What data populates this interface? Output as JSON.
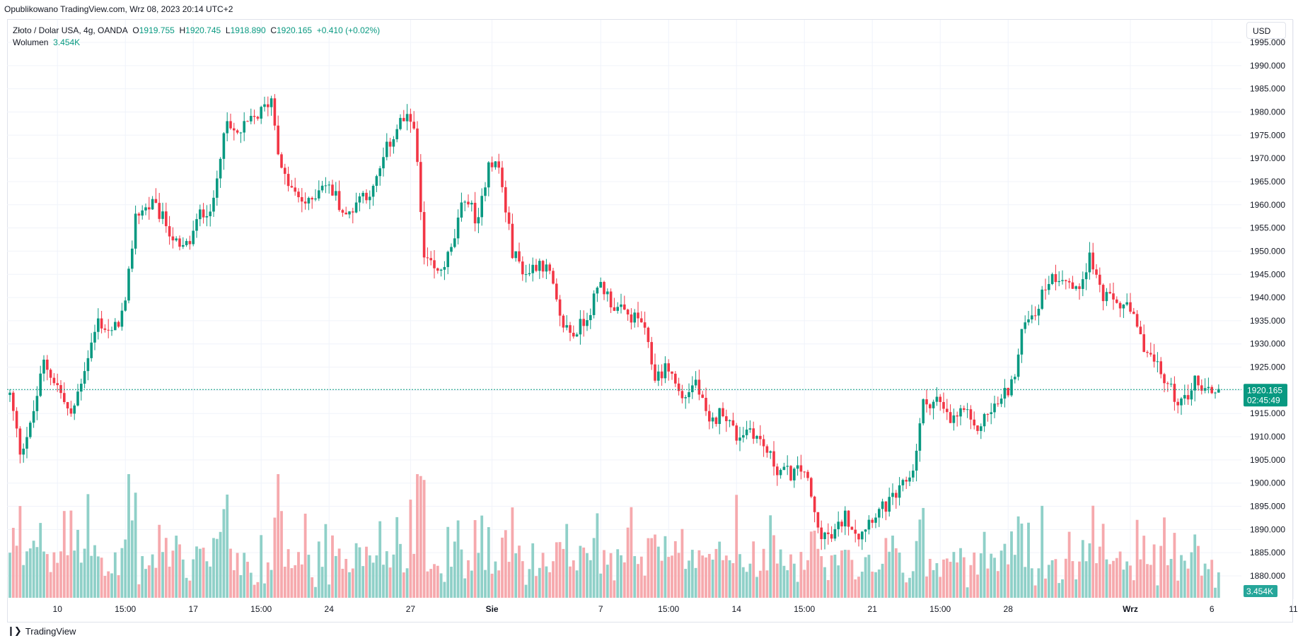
{
  "header": {
    "published": "Opublikowano TradingView.com, Wrz 08, 2023 20:14 UTC+2"
  },
  "legend": {
    "symbol": "Złoto / Dolar USA, 4g, OANDA",
    "o_label": "O",
    "o_value": "1919.755",
    "h_label": "H",
    "h_value": "1920.745",
    "l_label": "L",
    "l_value": "1918.890",
    "c_label": "C",
    "c_value": "1920.165",
    "change": "+0.410 (+0.02%)",
    "volume_label": "Wolumen",
    "volume_value": "3.454K"
  },
  "currency_button": "USD",
  "footer": {
    "brand": "TradingView",
    "logo": "tv-logo-icon"
  },
  "colors": {
    "up": "#089981",
    "down": "#f23645",
    "vol_up": "#8fd0c8",
    "vol_down": "#f6a9ad",
    "grid": "#f0f3fa"
  },
  "chart_data": {
    "type": "candlestick",
    "price_ylim": [
      1878,
      1996
    ],
    "y_ticks": [
      "1880.000",
      "1885.000",
      "1890.000",
      "1895.000",
      "1900.000",
      "1905.000",
      "1910.000",
      "1915.000",
      "1920.000",
      "1925.000",
      "1930.000",
      "1935.000",
      "1940.000",
      "1945.000",
      "1950.000",
      "1955.000",
      "1960.000",
      "1965.000",
      "1970.000",
      "1975.000",
      "1980.000",
      "1985.000",
      "1990.000",
      "1995.000"
    ],
    "x_ticks": [
      {
        "label": "10",
        "bar": 14,
        "bold": false
      },
      {
        "label": "15:00",
        "bar": 34,
        "bold": false
      },
      {
        "label": "17",
        "bar": 54,
        "bold": false
      },
      {
        "label": "15:00",
        "bar": 74,
        "bold": false
      },
      {
        "label": "24",
        "bar": 94,
        "bold": false
      },
      {
        "label": "27",
        "bar": 118,
        "bold": false
      },
      {
        "label": "Sie",
        "bar": 142,
        "bold": true
      },
      {
        "label": "7",
        "bar": 174,
        "bold": false
      },
      {
        "label": "15:00",
        "bar": 194,
        "bold": false
      },
      {
        "label": "14",
        "bar": 214,
        "bold": false
      },
      {
        "label": "15:00",
        "bar": 234,
        "bold": false
      },
      {
        "label": "21",
        "bar": 254,
        "bold": false
      },
      {
        "label": "15:00",
        "bar": 274,
        "bold": false
      },
      {
        "label": "28",
        "bar": 294,
        "bold": false
      },
      {
        "label": "Wrz",
        "bar": 330,
        "bold": true
      },
      {
        "label": "6",
        "bar": 354,
        "bold": false
      },
      {
        "label": "11",
        "bar": 378,
        "bold": false
      }
    ],
    "last_price": "1920.165",
    "last_price_value": 1920.165,
    "countdown": "02:45:49",
    "volume_badge": "3.454K",
    "anchors": [
      [
        0,
        1919
      ],
      [
        3,
        1907
      ],
      [
        6,
        1912
      ],
      [
        10,
        1926
      ],
      [
        14,
        1921
      ],
      [
        18,
        1914
      ],
      [
        22,
        1925
      ],
      [
        26,
        1935
      ],
      [
        30,
        1932
      ],
      [
        34,
        1938
      ],
      [
        37,
        1958
      ],
      [
        42,
        1960
      ],
      [
        46,
        1956
      ],
      [
        50,
        1950
      ],
      [
        53,
        1952
      ],
      [
        56,
        1958
      ],
      [
        60,
        1960
      ],
      [
        63,
        1977
      ],
      [
        67,
        1975
      ],
      [
        71,
        1978
      ],
      [
        74,
        1980
      ],
      [
        77,
        1983
      ],
      [
        80,
        1967
      ],
      [
        84,
        1962
      ],
      [
        88,
        1960
      ],
      [
        92,
        1965
      ],
      [
        96,
        1962
      ],
      [
        99,
        1957
      ],
      [
        103,
        1962
      ],
      [
        107,
        1963
      ],
      [
        111,
        1972
      ],
      [
        115,
        1978
      ],
      [
        119,
        1978
      ],
      [
        122,
        1948
      ],
      [
        126,
        1945
      ],
      [
        130,
        1950
      ],
      [
        134,
        1962
      ],
      [
        138,
        1956
      ],
      [
        141,
        1970
      ],
      [
        144,
        1968
      ],
      [
        148,
        1950
      ],
      [
        152,
        1945
      ],
      [
        156,
        1948
      ],
      [
        159,
        1945
      ],
      [
        162,
        1935
      ],
      [
        166,
        1932
      ],
      [
        170,
        1936
      ],
      [
        174,
        1943
      ],
      [
        178,
        1938
      ],
      [
        182,
        1936
      ],
      [
        186,
        1935
      ],
      [
        190,
        1923
      ],
      [
        194,
        1925
      ],
      [
        198,
        1918
      ],
      [
        202,
        1922
      ],
      [
        206,
        1912
      ],
      [
        210,
        1916
      ],
      [
        214,
        1910
      ],
      [
        218,
        1912
      ],
      [
        222,
        1908
      ],
      [
        226,
        1903
      ],
      [
        230,
        1902
      ],
      [
        234,
        1903
      ],
      [
        238,
        1890
      ],
      [
        242,
        1888
      ],
      [
        246,
        1893
      ],
      [
        250,
        1889
      ],
      [
        254,
        1893
      ],
      [
        258,
        1895
      ],
      [
        262,
        1898
      ],
      [
        266,
        1903
      ],
      [
        269,
        1917
      ],
      [
        273,
        1918
      ],
      [
        277,
        1913
      ],
      [
        281,
        1916
      ],
      [
        284,
        1911
      ],
      [
        288,
        1915
      ],
      [
        292,
        1918
      ],
      [
        296,
        1923
      ],
      [
        299,
        1936
      ],
      [
        302,
        1937
      ],
      [
        306,
        1944
      ],
      [
        310,
        1945
      ],
      [
        314,
        1941
      ],
      [
        318,
        1949
      ],
      [
        322,
        1940
      ],
      [
        326,
        1939
      ],
      [
        330,
        1937
      ],
      [
        333,
        1931
      ],
      [
        337,
        1926
      ],
      [
        341,
        1921
      ],
      [
        345,
        1917
      ],
      [
        349,
        1922
      ],
      [
        353,
        1920
      ],
      [
        356,
        1920
      ]
    ],
    "volume_max_k": 30
  }
}
